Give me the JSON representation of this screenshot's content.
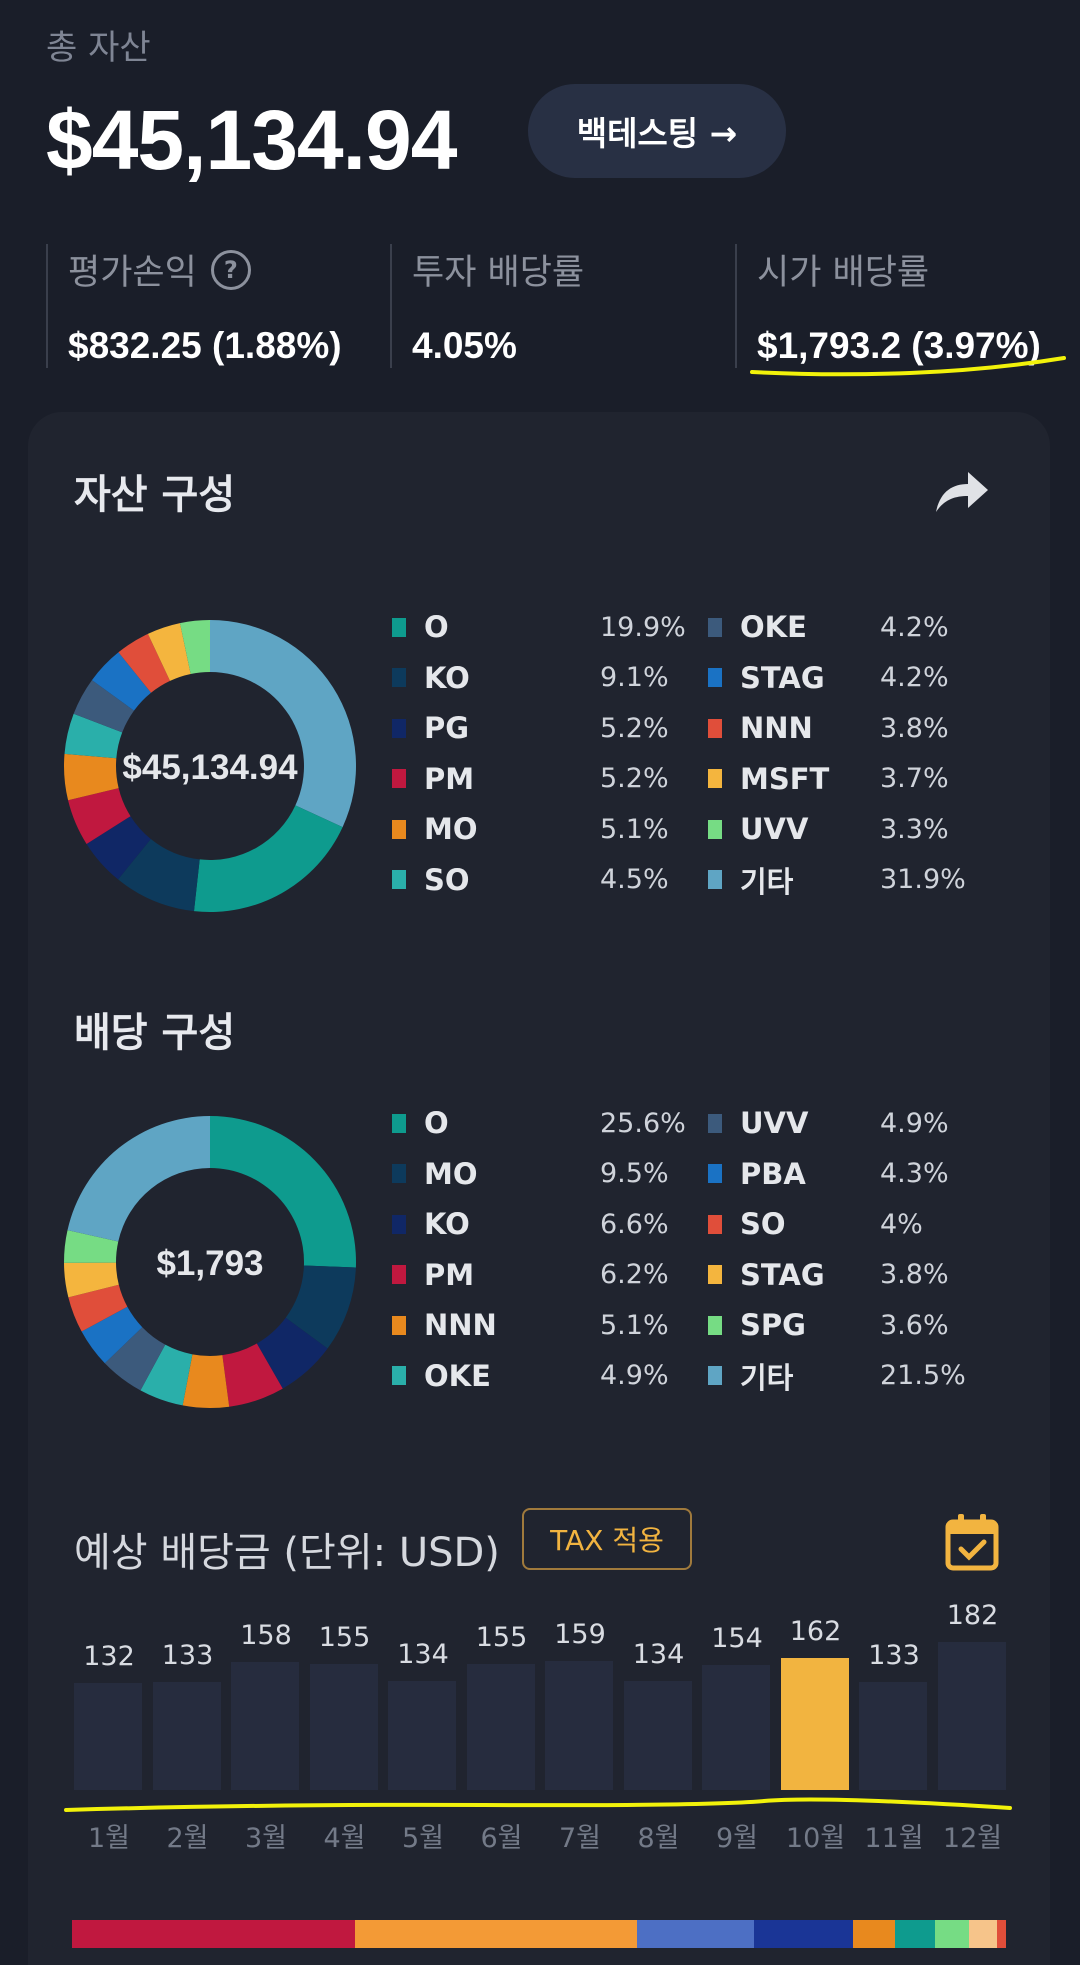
{
  "header": {
    "label": "총 자산",
    "total": "$45,134.94",
    "backtest_label": "백테스팅 →"
  },
  "stats": [
    {
      "label": "평가손익",
      "value": "$832.25 (1.88%)",
      "has_help": true
    },
    {
      "label": "투자 배당률",
      "value": "4.05%"
    },
    {
      "label": "시가 배당률",
      "value": "$1,793.2 (3.97%)"
    }
  ],
  "help_icon": "?",
  "asset": {
    "title": "자산 구성",
    "center": "$45,134.94",
    "items": [
      {
        "name": "O",
        "pct": "19.9%",
        "value": 19.9,
        "color": "#0e9b8e"
      },
      {
        "name": "KO",
        "pct": "9.1%",
        "value": 9.1,
        "color": "#0d3a5c"
      },
      {
        "name": "PG",
        "pct": "5.2%",
        "value": 5.2,
        "color": "#102766"
      },
      {
        "name": "PM",
        "pct": "5.2%",
        "value": 5.2,
        "color": "#c0183f"
      },
      {
        "name": "MO",
        "pct": "5.1%",
        "value": 5.1,
        "color": "#e8891e"
      },
      {
        "name": "SO",
        "pct": "4.5%",
        "value": 4.5,
        "color": "#2aafaa"
      },
      {
        "name": "OKE",
        "pct": "4.2%",
        "value": 4.2,
        "color": "#3c5a7c"
      },
      {
        "name": "STAG",
        "pct": "4.2%",
        "value": 4.2,
        "color": "#1a72c4"
      },
      {
        "name": "NNN",
        "pct": "3.8%",
        "value": 3.8,
        "color": "#e04e3a"
      },
      {
        "name": "MSFT",
        "pct": "3.7%",
        "value": 3.7,
        "color": "#f4b53e"
      },
      {
        "name": "UVV",
        "pct": "3.3%",
        "value": 3.3,
        "color": "#76dc84"
      },
      {
        "name": "기타",
        "pct": "31.9%",
        "value": 31.9,
        "color": "#5fa5c4"
      }
    ]
  },
  "dividend": {
    "title": "배당 구성",
    "center": "$1,793",
    "items": [
      {
        "name": "O",
        "pct": "25.6%",
        "value": 25.6,
        "color": "#0e9b8e"
      },
      {
        "name": "MO",
        "pct": "9.5%",
        "value": 9.5,
        "color": "#0d3a5c"
      },
      {
        "name": "KO",
        "pct": "6.6%",
        "value": 6.6,
        "color": "#102766"
      },
      {
        "name": "PM",
        "pct": "6.2%",
        "value": 6.2,
        "color": "#c0183f"
      },
      {
        "name": "NNN",
        "pct": "5.1%",
        "value": 5.1,
        "color": "#e8891e"
      },
      {
        "name": "OKE",
        "pct": "4.9%",
        "value": 4.9,
        "color": "#2aafaa"
      },
      {
        "name": "UVV",
        "pct": "4.9%",
        "value": 4.9,
        "color": "#3c5a7c"
      },
      {
        "name": "PBA",
        "pct": "4.3%",
        "value": 4.3,
        "color": "#1a72c4"
      },
      {
        "name": "SO",
        "pct": "4%",
        "value": 4,
        "color": "#e04e3a"
      },
      {
        "name": "STAG",
        "pct": "3.8%",
        "value": 3.8,
        "color": "#f4b53e"
      },
      {
        "name": "SPG",
        "pct": "3.6%",
        "value": 3.6,
        "color": "#76dc84"
      },
      {
        "name": "기타",
        "pct": "21.5%",
        "value": 21.5,
        "color": "#5fa5c4"
      }
    ]
  },
  "estimate": {
    "title": "예상 배당금 (단위: USD)",
    "tax_label": "TAX 적용",
    "calendar_icon": "calendar-check-icon",
    "share_icon": "share-arrow-icon"
  },
  "chart_data": {
    "type": "bar",
    "categories": [
      "1월",
      "2월",
      "3월",
      "4월",
      "5월",
      "6월",
      "7월",
      "8월",
      "9월",
      "10월",
      "11월",
      "12월"
    ],
    "values": [
      132,
      133,
      158,
      155,
      134,
      155,
      159,
      134,
      154,
      162,
      133,
      182
    ],
    "highlight_index": 9,
    "bar_color": "#262c3e",
    "highlight_color": "#f2b440"
  },
  "stack_bar": [
    {
      "value": 24.2,
      "color": "#c0183f"
    },
    {
      "value": 24.2,
      "color": "#f39a36"
    },
    {
      "value": 10,
      "color": "#4d6fc4"
    },
    {
      "value": 8.5,
      "color": "#1a3596"
    },
    {
      "value": 3.6,
      "color": "#e8891e"
    },
    {
      "value": 3.4,
      "color": "#0e9b8e"
    },
    {
      "value": 2.9,
      "color": "#76dc84"
    },
    {
      "value": 2.4,
      "color": "#f6c48a"
    },
    {
      "value": 0.8,
      "color": "#e04e3a"
    }
  ],
  "highlight_color": "#f2f20a"
}
